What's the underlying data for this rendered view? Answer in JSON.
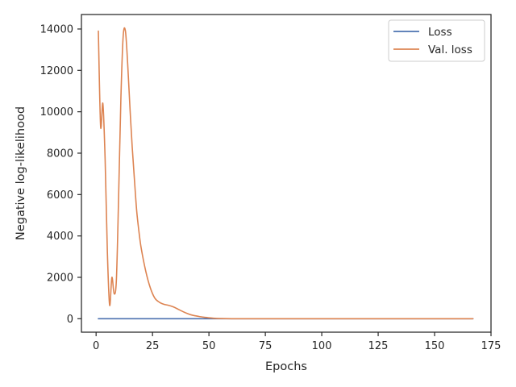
{
  "chart_data": {
    "type": "line",
    "title": "",
    "xlabel": "Epochs",
    "ylabel": "Negative log-likelihood",
    "xlim": [
      -6.5,
      175
    ],
    "ylim": [
      -650,
      14700
    ],
    "xticks": [
      0,
      25,
      50,
      75,
      100,
      125,
      150,
      175
    ],
    "yticks": [
      0,
      2000,
      4000,
      6000,
      8000,
      10000,
      12000,
      14000
    ],
    "grid": false,
    "legend": {
      "position": "top-right",
      "entries": [
        "Loss",
        "Val. loss"
      ]
    },
    "colors": {
      "loss": "#4c72b0",
      "val_loss": "#dd8452",
      "axis": "#262626"
    },
    "series": [
      {
        "name": "Loss",
        "color": "#4c72b0",
        "x": [
          1,
          10,
          20,
          40,
          60,
          80,
          100,
          120,
          140,
          160,
          167
        ],
        "y": [
          0,
          0,
          0,
          0,
          0,
          0,
          0,
          0,
          0,
          0,
          0
        ]
      },
      {
        "name": "Val. loss",
        "color": "#dd8452",
        "x": [
          1,
          2,
          3,
          4,
          5,
          6,
          7,
          8,
          9,
          10,
          11,
          12,
          13,
          14,
          15,
          16,
          17,
          18,
          19,
          20,
          22,
          24,
          26,
          28,
          30,
          32,
          34,
          36,
          38,
          40,
          42,
          44,
          46,
          48,
          50,
          52,
          55,
          60,
          70,
          80,
          100,
          120,
          140,
          160,
          167
        ],
        "y": [
          13900,
          9300,
          10400,
          7700,
          3200,
          650,
          2000,
          1200,
          1900,
          6000,
          10700,
          13650,
          13900,
          12300,
          10200,
          8300,
          6700,
          5200,
          4200,
          3400,
          2300,
          1500,
          1000,
          800,
          700,
          650,
          580,
          480,
          370,
          270,
          190,
          140,
          100,
          70,
          45,
          25,
          10,
          0,
          0,
          0,
          0,
          0,
          0,
          0,
          0
        ]
      }
    ]
  }
}
